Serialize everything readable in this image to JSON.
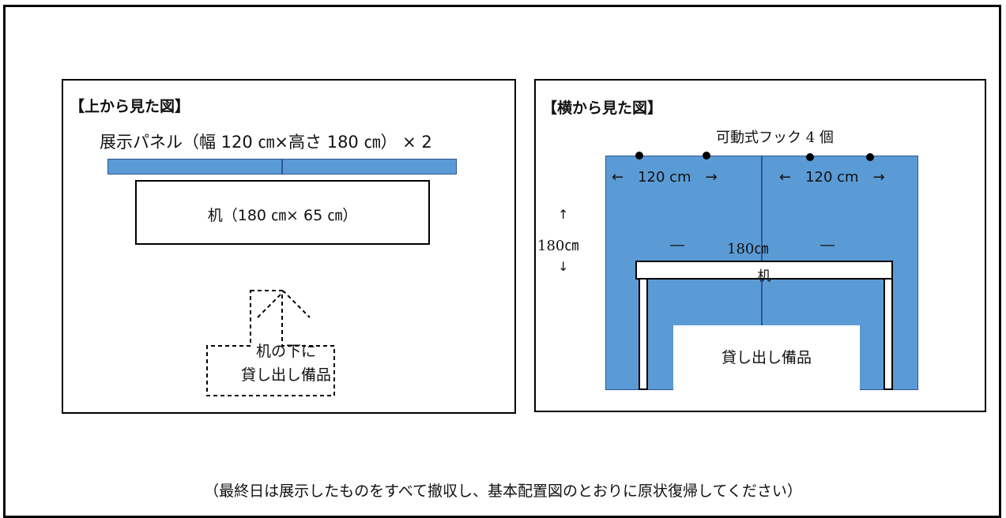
{
  "top_view": {
    "title": "【上から見た図】",
    "panel_label": "展示パネル（幅 120 ㎝×高さ 180 ㎝） × 2",
    "desk_label": "机（180 ㎝× 65 ㎝）",
    "below_desk_line1": "机の下に",
    "below_desk_line2": "貸し出し備品"
  },
  "side_view": {
    "title": "【横から見た図】",
    "hooks_label": "可動式フック 4 個",
    "panel_width_left": "←　120 cm　→",
    "panel_width_right": "←　120 cm　→",
    "height_arrow_up": "↑",
    "height_label": "180㎝",
    "height_arrow_down": "↓",
    "desk_width_left_arrow": "―",
    "desk_width_label": "180㎝",
    "desk_width_right_arrow": "―",
    "desk_label": "机",
    "equipment_label": "貸し出し備品"
  },
  "footer_note": "（最終日は展示したものをすべて撤収し、基本配置図のとおりに原状復帰してください）",
  "colors": {
    "panel_fill": "#5b9bd5",
    "panel_border": "#2f5597"
  }
}
